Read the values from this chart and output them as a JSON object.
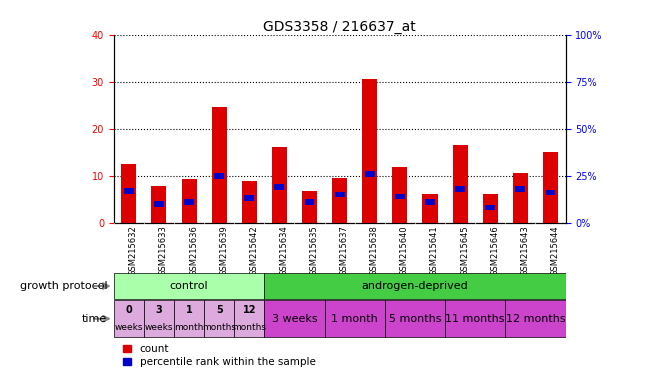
{
  "title": "GDS3358 / 216637_at",
  "samples": [
    "GSM215632",
    "GSM215633",
    "GSM215636",
    "GSM215639",
    "GSM215642",
    "GSM215634",
    "GSM215635",
    "GSM215637",
    "GSM215638",
    "GSM215640",
    "GSM215641",
    "GSM215645",
    "GSM215646",
    "GSM215643",
    "GSM215644"
  ],
  "count_values": [
    12.5,
    7.8,
    9.2,
    24.5,
    8.8,
    16.0,
    6.8,
    9.5,
    30.5,
    11.8,
    6.2,
    16.5,
    6.2,
    10.5,
    15.0
  ],
  "percentile_values": [
    17,
    10,
    11,
    25,
    13,
    19,
    11,
    15,
    26,
    14,
    11,
    18,
    8,
    18,
    16
  ],
  "ylim_left": [
    0,
    40
  ],
  "ylim_right": [
    0,
    100
  ],
  "yticks_left": [
    0,
    10,
    20,
    30,
    40
  ],
  "yticks_right": [
    0,
    25,
    50,
    75,
    100
  ],
  "bar_color_red": "#dd0000",
  "bar_color_blue": "#0000cc",
  "control_color": "#aaffaa",
  "androgen_color": "#44cc44",
  "time_ctrl_color": "#ddaadd",
  "time_and_color": "#cc44cc",
  "label_row_bg": "#cccccc",
  "arrow_color": "#888888",
  "control_samples_count": 5,
  "growth_protocol_label": "growth protocol",
  "time_label": "time",
  "protocol_groups": [
    {
      "label": "control",
      "start": 0,
      "end": 5
    },
    {
      "label": "androgen-deprived",
      "start": 5,
      "end": 15
    }
  ],
  "time_groups_control": [
    {
      "label": "0\nweeks",
      "start": 0,
      "end": 1
    },
    {
      "label": "3\nweeks",
      "start": 1,
      "end": 2
    },
    {
      "label": "1\nmonth",
      "start": 2,
      "end": 3
    },
    {
      "label": "5\nmonths",
      "start": 3,
      "end": 4
    },
    {
      "label": "12\nmonths",
      "start": 4,
      "end": 5
    }
  ],
  "time_groups_androgen": [
    {
      "label": "3 weeks",
      "start": 5,
      "end": 7
    },
    {
      "label": "1 month",
      "start": 7,
      "end": 9
    },
    {
      "label": "5 months",
      "start": 9,
      "end": 11
    },
    {
      "label": "11 months",
      "start": 11,
      "end": 13
    },
    {
      "label": "12 months",
      "start": 13,
      "end": 15
    }
  ],
  "legend_count_label": "count",
  "legend_pct_label": "percentile rank within the sample",
  "title_fontsize": 10,
  "tick_fontsize": 7,
  "label_fontsize": 8,
  "annotation_fontsize": 8
}
